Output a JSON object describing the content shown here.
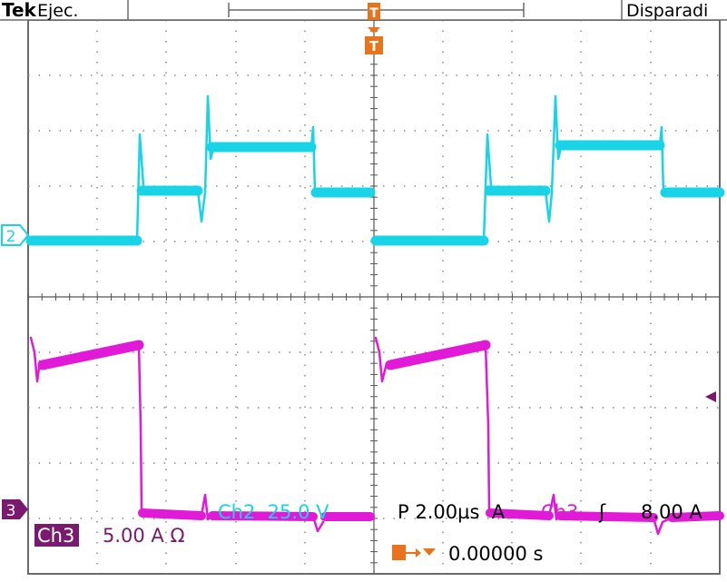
{
  "header": {
    "brand": "Tek",
    "status": "Ejec.",
    "trigger_status": "Disparadi"
  },
  "channels": {
    "ch2_marker": "2",
    "ch3_marker": "3",
    "trigger_marker": "T"
  },
  "readouts": {
    "ch3_label": "Ch3",
    "ch3_scale": "5.00 A Ω",
    "ch2_scale": "Ch2  25.0 V",
    "timebase": "P 2.00µs  A",
    "trigger_source": "Ch3",
    "trigger_slope": "ʃ",
    "trigger_level": "8.00 A",
    "trigger_delay": "0.00000 s"
  },
  "colors": {
    "ch2": "#19d3e6",
    "ch3": "#e01ad6",
    "ch3_label_bg": "#7a1a6e",
    "trigger": "#e8731a",
    "grid": "#7a7a7a",
    "background": "#ffffff"
  }
}
